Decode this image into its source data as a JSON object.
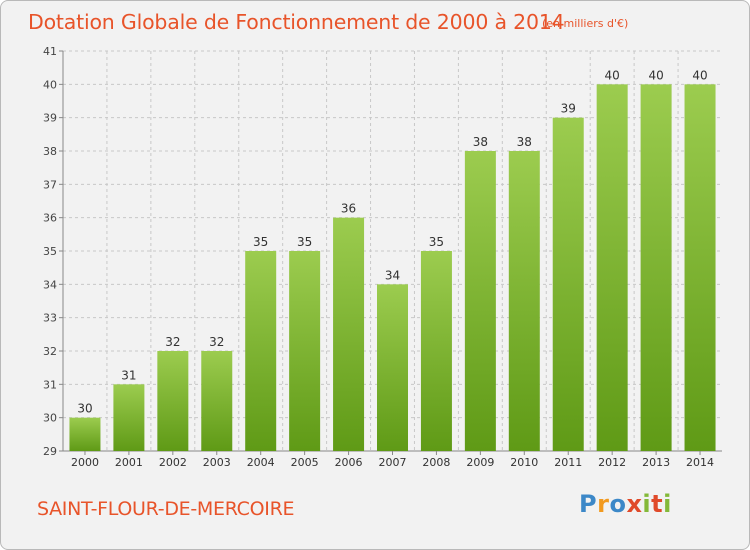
{
  "header": {
    "title": "Dotation Globale de Fonctionnement de 2000 à 2014",
    "subtitle": "(en milliers d'€)"
  },
  "footer": {
    "city": "SAINT-FLOUR-DE-MERCOIRE",
    "logo": {
      "letters": [
        "P",
        "r",
        "o",
        "x",
        "i",
        "t",
        "i"
      ],
      "colors": [
        "#3c88c8",
        "#f29a1f",
        "#3c88c8",
        "#e04a2a",
        "#84b939",
        "#e04a2a",
        "#84b939"
      ]
    }
  },
  "chart_data": {
    "type": "bar",
    "categories": [
      "2000",
      "2001",
      "2002",
      "2003",
      "2004",
      "2005",
      "2006",
      "2007",
      "2008",
      "2009",
      "2010",
      "2011",
      "2012",
      "2013",
      "2014"
    ],
    "values": [
      30,
      31,
      32,
      32,
      35,
      35,
      36,
      34,
      35,
      38,
      38,
      39,
      40,
      40,
      40
    ],
    "data_labels": [
      "30",
      "31",
      "32",
      "32",
      "35",
      "35",
      "36",
      "34",
      "35",
      "38",
      "38",
      "39",
      "40",
      "40",
      "40"
    ],
    "title": "Dotation Globale de Fonctionnement de 2000 à 2014",
    "subtitle": "(en milliers d'€)",
    "ylim": [
      29,
      41
    ],
    "yticks": [
      29,
      30,
      31,
      32,
      33,
      34,
      35,
      36,
      37,
      38,
      39,
      40,
      41
    ],
    "grid": true,
    "bar_color_top": "#9ccc4f",
    "bar_color_bottom": "#5f9a16",
    "grid_color": "#c8c8c8",
    "text_color": "#e8542a"
  }
}
